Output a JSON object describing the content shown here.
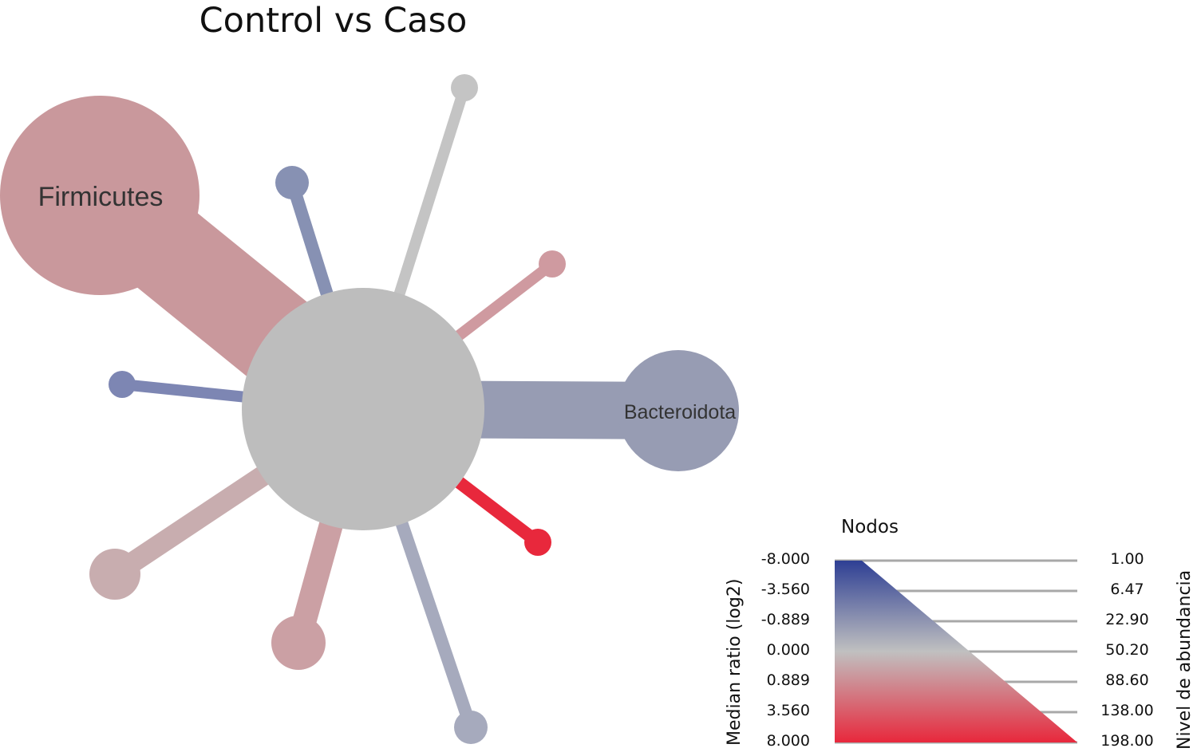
{
  "title": "Control vs Caso",
  "nodes": {
    "center": {
      "color": "#bdbdbd"
    },
    "spokes": [
      {
        "id": "firmicutes",
        "label": "Firmicutes",
        "color": "#c9989c"
      },
      {
        "id": "bacteroidota",
        "label": "Bacteroidota",
        "color": "#979cb3"
      },
      {
        "id": "top-gray",
        "label": "",
        "color": "#c4c4c4"
      },
      {
        "id": "upper-blue",
        "label": "",
        "color": "#8791b3"
      },
      {
        "id": "upper-right-pink",
        "label": "",
        "color": "#cf9aa0"
      },
      {
        "id": "left-blue",
        "label": "",
        "color": "#7d86b3"
      },
      {
        "id": "red",
        "label": "",
        "color": "#e8283c"
      },
      {
        "id": "lower-left-pink",
        "label": "",
        "color": "#c8adaf"
      },
      {
        "id": "lower-pink",
        "label": "",
        "color": "#cba0a4"
      },
      {
        "id": "lower-blue-gray",
        "label": "",
        "color": "#a6aabd"
      }
    ]
  },
  "legend": {
    "title": "Nodos",
    "ratio_axis_title": "Median ratio (log2)",
    "abundance_axis_title": "Nivel de abundancia",
    "ratio_labels": [
      "-8.000",
      "-3.560",
      "-0.889",
      "0.000",
      "0.889",
      "3.560",
      "8.000"
    ],
    "abundance_labels": [
      "1.00",
      "6.47",
      "22.90",
      "50.20",
      "88.60",
      "138.00",
      "198.00"
    ],
    "gradient_colors": [
      "#2e3f94",
      "#c0c0c0",
      "#e8283c"
    ]
  }
}
